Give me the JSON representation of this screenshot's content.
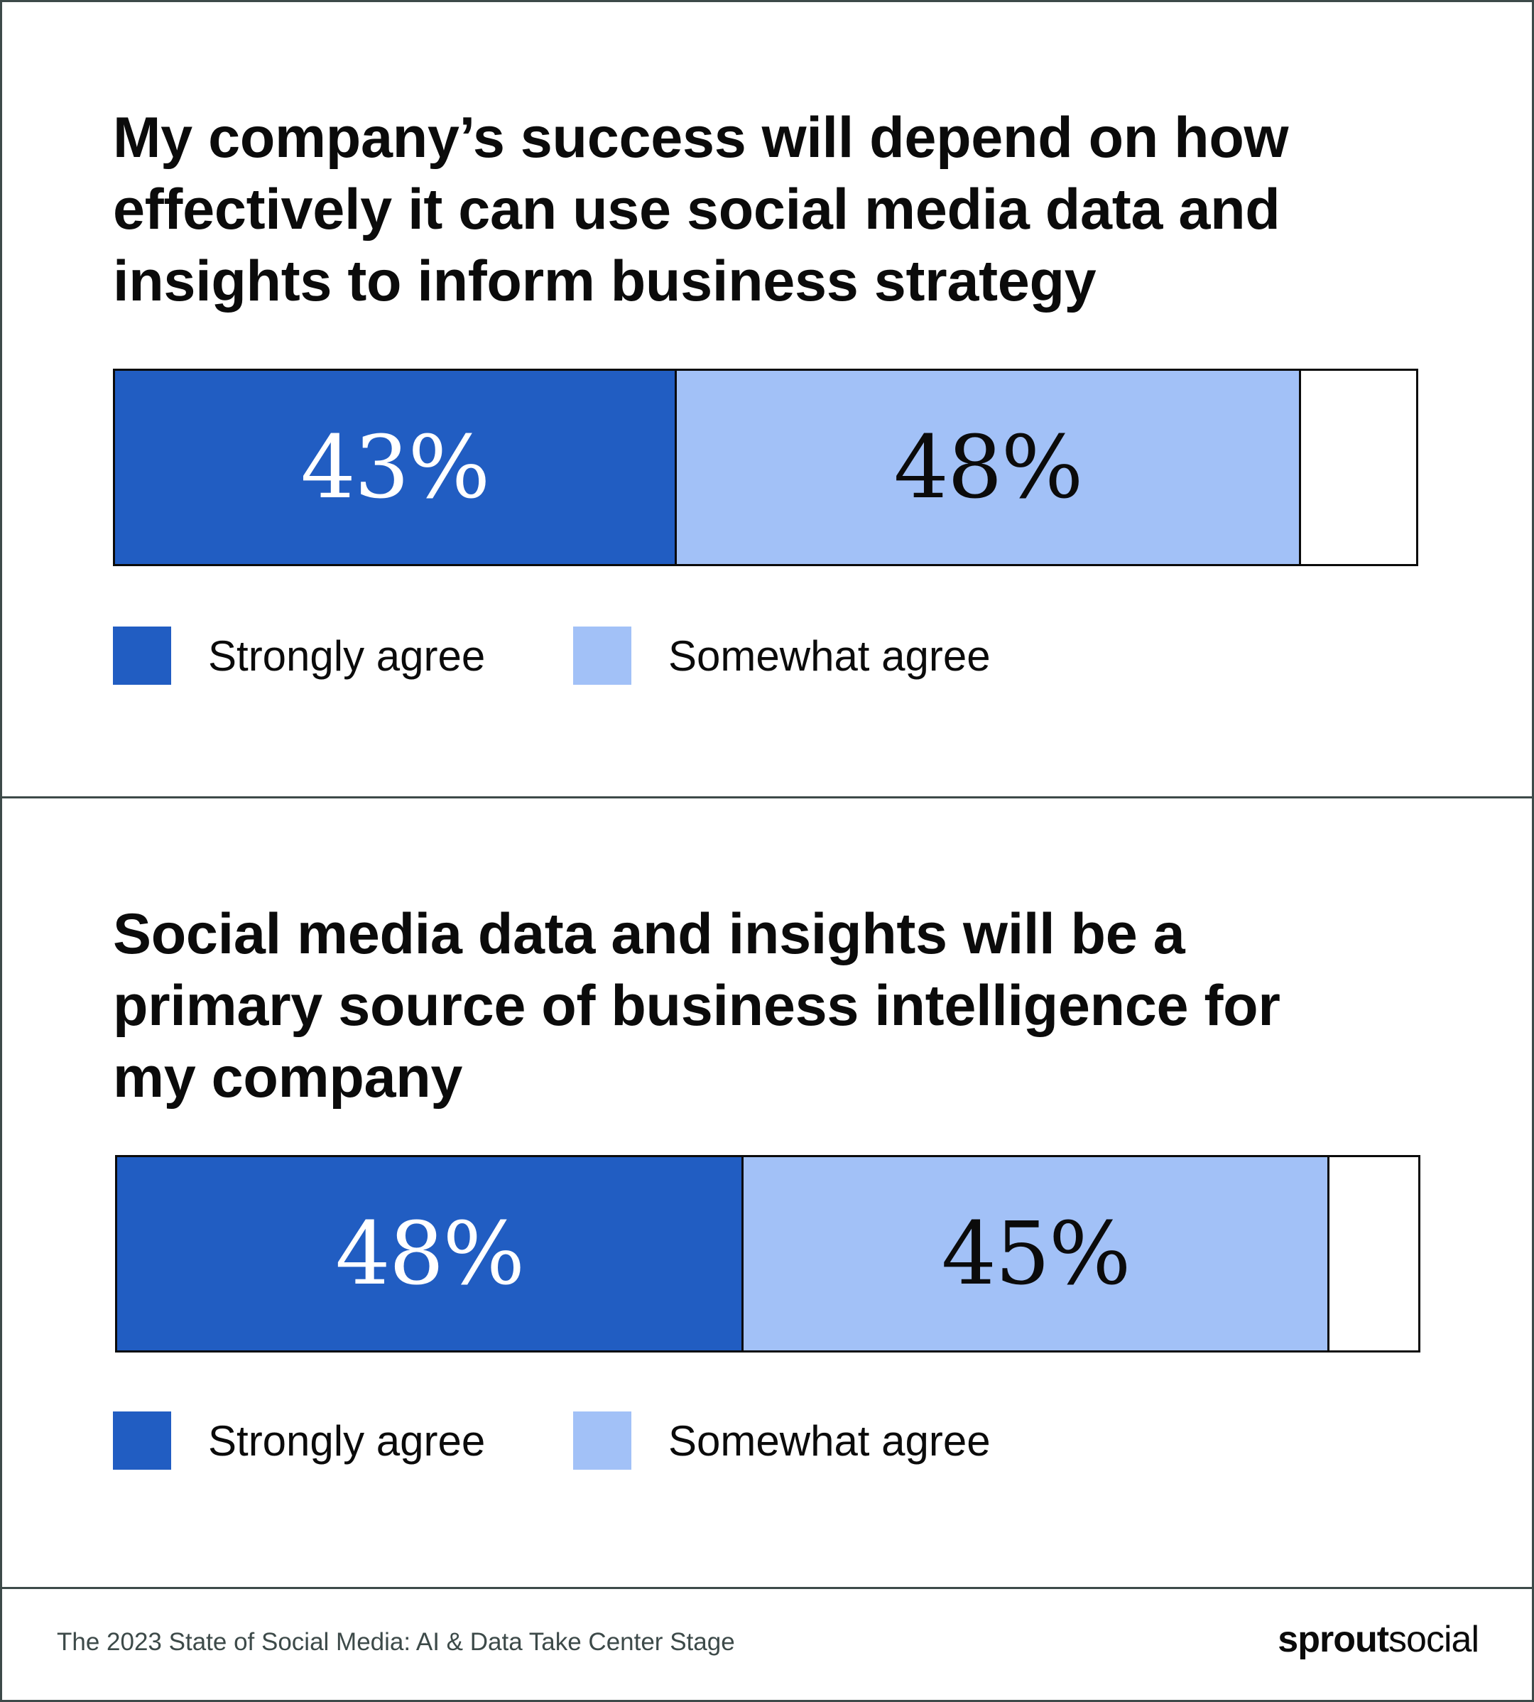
{
  "colors": {
    "strongly_agree": "#215dc2",
    "somewhat_agree": "#a2c1f7",
    "frame": "#3d4a49"
  },
  "chart_data": [
    {
      "type": "bar",
      "orientation": "horizontal-stacked",
      "title": "My company’s success will depend on how effectively it can use social media data and insights to inform business strategy",
      "title_lines": [
        "My company’s success will depend on how",
        "effectively it can use social media data and",
        "insights to inform business strategy"
      ],
      "series": [
        {
          "name": "Strongly agree",
          "value": 43,
          "label": "43%"
        },
        {
          "name": "Somewhat agree",
          "value": 48,
          "label": "48%"
        }
      ],
      "legend": {
        "position": "bottom-left",
        "entries": [
          "Strongly agree",
          "Somewhat agree"
        ]
      },
      "xlim": [
        0,
        100
      ]
    },
    {
      "type": "bar",
      "orientation": "horizontal-stacked",
      "title": "Social media data and insights will be a primary source of business intelligence for my company",
      "title_lines": [
        "Social media data and insights will be a",
        "primary source of business intelligence for",
        "my company"
      ],
      "series": [
        {
          "name": "Strongly agree",
          "value": 48,
          "label": "48%"
        },
        {
          "name": "Somewhat agree",
          "value": 45,
          "label": "45%"
        }
      ],
      "legend": {
        "position": "bottom-left",
        "entries": [
          "Strongly agree",
          "Somewhat agree"
        ]
      },
      "xlim": [
        0,
        100
      ]
    }
  ],
  "footer": {
    "source": "The 2023 State of Social Media: AI & Data Take Center Stage",
    "logo_bold": "sprout",
    "logo_regular": "social"
  }
}
